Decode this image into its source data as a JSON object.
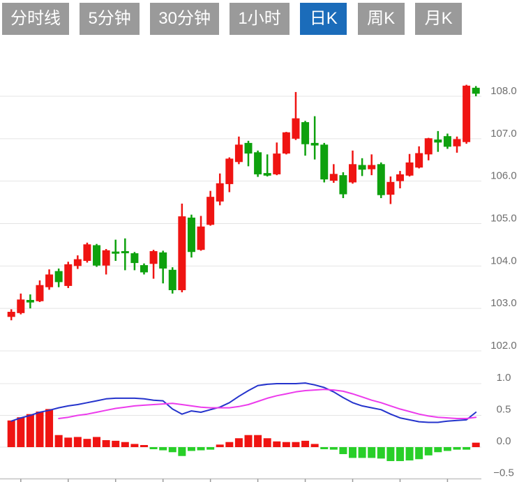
{
  "toolbar": {
    "active_index": 4,
    "tabs": [
      {
        "id": "timeline",
        "label": "分时线"
      },
      {
        "id": "5min",
        "label": "5分钟"
      },
      {
        "id": "30min",
        "label": "30分钟"
      },
      {
        "id": "1hour",
        "label": "1小时"
      },
      {
        "id": "daily-k",
        "label": "日K"
      },
      {
        "id": "weekly-k",
        "label": "周K"
      },
      {
        "id": "monthly-k",
        "label": "月K"
      }
    ],
    "colors": {
      "tab_bg": "#9a9a9a",
      "tab_active_bg": "#1b6cba",
      "tab_text": "#ffffff"
    }
  },
  "chart_data": {
    "type": "candlestick",
    "subtype": "daily-k-line-with-macd",
    "candle_count": 50,
    "colors": {
      "up": "#ef1412",
      "down": "#0ea10e",
      "hist_up": "#ef1412",
      "hist_down": "#28cf28",
      "dif_line": "#2433cc",
      "dea_line": "#ec3bec",
      "grid": "#e4e4e4",
      "axis_line": "#c4c4c4",
      "axis_tick": "#9a9a9a",
      "axis_text": "#6e6e6e"
    },
    "price_panel": {
      "type": "candlestick",
      "y_axis": {
        "side": "right",
        "ticks": [
          {
            "label": "108.0",
            "value": 108.0
          },
          {
            "label": "107.0",
            "value": 107.0
          },
          {
            "label": "106.0",
            "value": 106.0
          },
          {
            "label": "105.0",
            "value": 105.0
          },
          {
            "label": "104.0",
            "value": 104.0
          },
          {
            "label": "103.0",
            "value": 103.0
          },
          {
            "label": "102.0",
            "value": 102.0
          }
        ]
      },
      "candles_ohlc": [
        [
          102.8,
          102.98,
          102.72,
          102.92
        ],
        [
          102.89,
          103.35,
          102.86,
          103.21
        ],
        [
          103.2,
          103.33,
          103.0,
          103.14
        ],
        [
          103.17,
          103.66,
          103.15,
          103.55
        ],
        [
          103.5,
          103.92,
          103.44,
          103.8
        ],
        [
          103.88,
          103.94,
          103.5,
          103.62
        ],
        [
          103.53,
          104.1,
          103.48,
          104.04
        ],
        [
          104.0,
          104.25,
          103.93,
          104.16
        ],
        [
          104.12,
          104.55,
          104.08,
          104.51
        ],
        [
          104.49,
          104.52,
          103.98,
          104.01
        ],
        [
          104.01,
          104.4,
          103.8,
          104.37
        ],
        [
          104.34,
          104.62,
          104.12,
          104.29
        ],
        [
          104.35,
          104.65,
          103.9,
          104.3
        ],
        [
          104.3,
          104.33,
          103.9,
          104.07
        ],
        [
          104.02,
          104.06,
          103.8,
          103.85
        ],
        [
          104.05,
          104.38,
          103.7,
          104.35
        ],
        [
          104.32,
          104.36,
          103.59,
          103.94
        ],
        [
          103.91,
          103.97,
          103.35,
          103.43
        ],
        [
          103.43,
          105.47,
          103.38,
          105.17
        ],
        [
          105.14,
          105.21,
          104.2,
          104.33
        ],
        [
          104.38,
          105.18,
          104.36,
          104.93
        ],
        [
          104.97,
          105.77,
          104.95,
          105.63
        ],
        [
          105.52,
          106.18,
          105.43,
          105.95
        ],
        [
          105.93,
          106.56,
          105.74,
          106.53
        ],
        [
          106.45,
          107.05,
          106.4,
          106.86
        ],
        [
          106.9,
          106.95,
          106.35,
          106.65
        ],
        [
          106.68,
          106.72,
          106.1,
          106.16
        ],
        [
          106.19,
          106.63,
          106.11,
          106.13
        ],
        [
          106.16,
          106.91,
          106.14,
          106.65
        ],
        [
          106.65,
          107.16,
          106.63,
          107.15
        ],
        [
          107.0,
          108.1,
          106.97,
          107.48
        ],
        [
          107.39,
          107.42,
          106.6,
          106.87
        ],
        [
          106.9,
          107.53,
          106.51,
          106.84
        ],
        [
          106.86,
          106.9,
          105.97,
          106.04
        ],
        [
          106.01,
          106.4,
          105.96,
          106.17
        ],
        [
          106.14,
          106.21,
          105.6,
          105.69
        ],
        [
          105.97,
          106.72,
          105.94,
          106.4
        ],
        [
          106.38,
          106.54,
          106.12,
          106.27
        ],
        [
          106.28,
          106.63,
          106.14,
          106.38
        ],
        [
          106.4,
          106.44,
          105.6,
          105.67
        ],
        [
          105.68,
          106.11,
          105.46,
          105.98
        ],
        [
          106.0,
          106.24,
          105.83,
          106.16
        ],
        [
          106.13,
          106.64,
          106.11,
          106.44
        ],
        [
          106.32,
          106.82,
          106.3,
          106.66
        ],
        [
          106.63,
          107.02,
          106.49,
          107.01
        ],
        [
          106.98,
          107.18,
          106.69,
          106.91
        ],
        [
          107.06,
          107.12,
          106.76,
          106.81
        ],
        [
          106.82,
          107.05,
          106.67,
          106.99
        ],
        [
          106.92,
          108.27,
          106.88,
          108.25
        ],
        [
          108.2,
          108.24,
          108.0,
          108.06
        ]
      ]
    },
    "macd_panel": {
      "type": "bar+line",
      "y_axis": {
        "side": "right",
        "ticks": [
          {
            "label": "1.0",
            "value": 1.0
          },
          {
            "label": "0.5",
            "value": 0.5
          },
          {
            "label": "0.0",
            "value": 0.0
          },
          {
            "label": "−0.5",
            "value": -0.5
          }
        ]
      },
      "histogram": [
        0.42,
        0.47,
        0.52,
        0.56,
        0.6,
        0.19,
        0.15,
        0.16,
        0.13,
        0.16,
        0.11,
        0.1,
        0.08,
        0.05,
        0.02,
        -0.03,
        -0.05,
        -0.08,
        -0.14,
        -0.06,
        -0.05,
        -0.04,
        0.04,
        0.08,
        0.14,
        0.19,
        0.19,
        0.14,
        0.09,
        0.08,
        0.08,
        0.1,
        0.05,
        -0.01,
        -0.04,
        -0.11,
        -0.17,
        -0.17,
        -0.17,
        -0.18,
        -0.22,
        -0.22,
        -0.21,
        -0.19,
        -0.13,
        -0.08,
        -0.06,
        -0.04,
        -0.04,
        0.07
      ],
      "dif": [
        0.41,
        0.46,
        0.5,
        0.55,
        0.58,
        0.62,
        0.65,
        0.67,
        0.7,
        0.73,
        0.76,
        0.77,
        0.77,
        0.77,
        0.76,
        0.74,
        0.73,
        0.6,
        0.52,
        0.57,
        0.55,
        0.59,
        0.63,
        0.7,
        0.8,
        0.89,
        0.97,
        0.99,
        1.0,
        1.0,
        1.0,
        1.01,
        0.98,
        0.94,
        0.87,
        0.78,
        0.7,
        0.65,
        0.62,
        0.59,
        0.52,
        0.46,
        0.43,
        0.4,
        0.39,
        0.39,
        0.41,
        0.42,
        0.43,
        0.55
      ],
      "dea": [
        null,
        null,
        null,
        null,
        null,
        0.45,
        0.47,
        0.5,
        0.52,
        0.55,
        0.58,
        0.61,
        0.63,
        0.65,
        0.66,
        0.67,
        0.68,
        0.69,
        0.67,
        0.65,
        0.63,
        0.62,
        0.62,
        0.62,
        0.64,
        0.67,
        0.72,
        0.77,
        0.81,
        0.84,
        0.87,
        0.89,
        0.9,
        0.91,
        0.9,
        0.88,
        0.84,
        0.79,
        0.74,
        0.7,
        0.65,
        0.6,
        0.56,
        0.52,
        0.49,
        0.47,
        0.46,
        0.45,
        0.45,
        0.47
      ]
    },
    "x_axis": {
      "labels_visible": false,
      "tick_candle_indices": [
        1,
        6,
        11,
        16,
        21,
        26,
        31,
        36,
        41,
        46
      ]
    }
  }
}
